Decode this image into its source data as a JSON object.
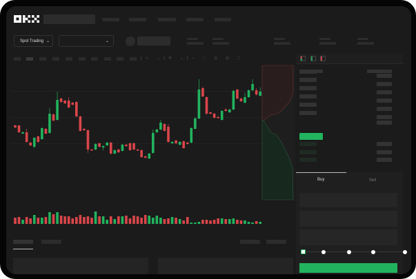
{
  "header": {
    "logo": "OKX"
  },
  "toolbar": {
    "market_selector": "Spot Trading",
    "market_selector_icon": "chevron-down-icon",
    "pair_selector_icon": "chevron-down-icon"
  },
  "orderbook": {
    "view_icons": [
      "orderbook-both-icon",
      "orderbook-bids-icon",
      "orderbook-asks-icon"
    ]
  },
  "trade_panel": {
    "tabs": [
      "Buy",
      "Sell"
    ],
    "active_tab": "Buy",
    "slider_percent": 0,
    "slider_marks": [
      0,
      25,
      50,
      75,
      100
    ]
  },
  "colors": {
    "up": "#22b35e",
    "down": "#d9464a",
    "background": "#1b1b1b",
    "accent": "#22b35e"
  },
  "chart_data": {
    "type": "candlestick",
    "candles": [
      [
        118,
        115,
        119,
        114
      ],
      [
        118,
        108,
        118,
        107
      ],
      [
        106,
        108,
        109,
        106
      ],
      [
        108,
        94,
        113,
        93
      ],
      [
        93,
        89,
        94,
        88
      ],
      [
        87,
        100,
        101,
        85
      ],
      [
        102,
        94,
        103,
        93
      ],
      [
        98,
        114,
        115,
        97
      ],
      [
        113,
        106,
        114,
        105
      ],
      [
        107,
        135,
        143,
        106
      ],
      [
        134,
        125,
        135,
        124
      ],
      [
        126,
        155,
        167,
        125
      ],
      [
        157,
        152,
        158,
        151
      ],
      [
        154,
        150,
        155,
        149
      ],
      [
        154,
        144,
        159,
        143
      ],
      [
        151,
        148,
        152,
        147
      ],
      [
        152,
        131,
        153,
        130
      ],
      [
        131,
        110,
        132,
        109
      ],
      [
        113,
        111,
        114,
        110
      ],
      [
        111,
        83,
        112,
        78
      ],
      [
        83,
        82,
        84,
        81
      ],
      [
        83,
        91,
        92,
        82
      ],
      [
        92,
        87,
        93,
        86
      ],
      [
        86,
        88,
        89,
        82
      ],
      [
        89,
        93,
        94,
        88
      ],
      [
        93,
        77,
        94,
        76
      ],
      [
        77,
        82,
        83,
        76
      ],
      [
        83,
        79,
        84,
        78
      ],
      [
        81,
        90,
        91,
        80
      ],
      [
        90,
        88,
        91,
        87
      ],
      [
        92,
        82,
        93,
        81
      ],
      [
        92,
        83,
        93,
        82
      ],
      [
        83,
        82,
        84,
        81
      ],
      [
        82,
        72,
        83,
        71
      ],
      [
        73,
        71,
        74,
        70
      ],
      [
        70,
        77,
        78,
        69
      ],
      [
        78,
        107,
        112,
        77
      ],
      [
        108,
        112,
        113,
        107
      ],
      [
        112,
        122,
        126,
        111
      ],
      [
        120,
        110,
        121,
        109
      ],
      [
        116,
        94,
        120,
        93
      ],
      [
        92,
        94,
        95,
        91
      ],
      [
        96,
        92,
        97,
        91
      ],
      [
        90,
        94,
        95,
        89
      ],
      [
        95,
        85,
        96,
        84
      ],
      [
        93,
        91,
        94,
        90
      ],
      [
        93,
        114,
        115,
        92
      ],
      [
        113,
        128,
        130,
        112
      ],
      [
        128,
        170,
        185,
        127
      ],
      [
        172,
        160,
        174,
        159
      ],
      [
        159,
        135,
        160,
        133
      ],
      [
        137,
        135,
        138,
        134
      ],
      [
        135,
        129,
        136,
        128
      ],
      [
        130,
        129,
        132,
        128
      ],
      [
        126,
        139,
        140,
        125
      ],
      [
        141,
        139,
        143,
        138
      ],
      [
        137,
        141,
        142,
        136
      ],
      [
        141,
        168,
        170,
        140
      ],
      [
        170,
        157,
        171,
        156
      ],
      [
        157,
        153,
        158,
        152
      ],
      [
        151,
        159,
        165,
        150
      ],
      [
        159,
        169,
        170,
        158
      ],
      [
        169,
        178,
        185,
        168
      ],
      [
        169,
        163,
        172,
        161
      ],
      [
        161,
        167,
        173,
        160
      ]
    ],
    "volume": [
      9,
      10,
      6,
      10,
      8,
      13,
      9,
      9,
      10,
      17,
      14,
      17,
      12,
      11,
      11,
      8,
      10,
      13,
      10,
      11,
      9,
      18,
      11,
      11,
      6,
      11,
      7,
      11,
      11,
      12,
      8,
      12,
      11,
      9,
      13,
      12,
      9,
      12,
      9,
      7,
      8,
      10,
      9,
      7,
      5,
      10,
      2,
      2,
      3,
      6,
      6,
      5,
      6,
      8,
      8,
      7,
      7,
      8,
      6,
      5,
      5,
      3,
      2,
      4,
      3
    ]
  }
}
